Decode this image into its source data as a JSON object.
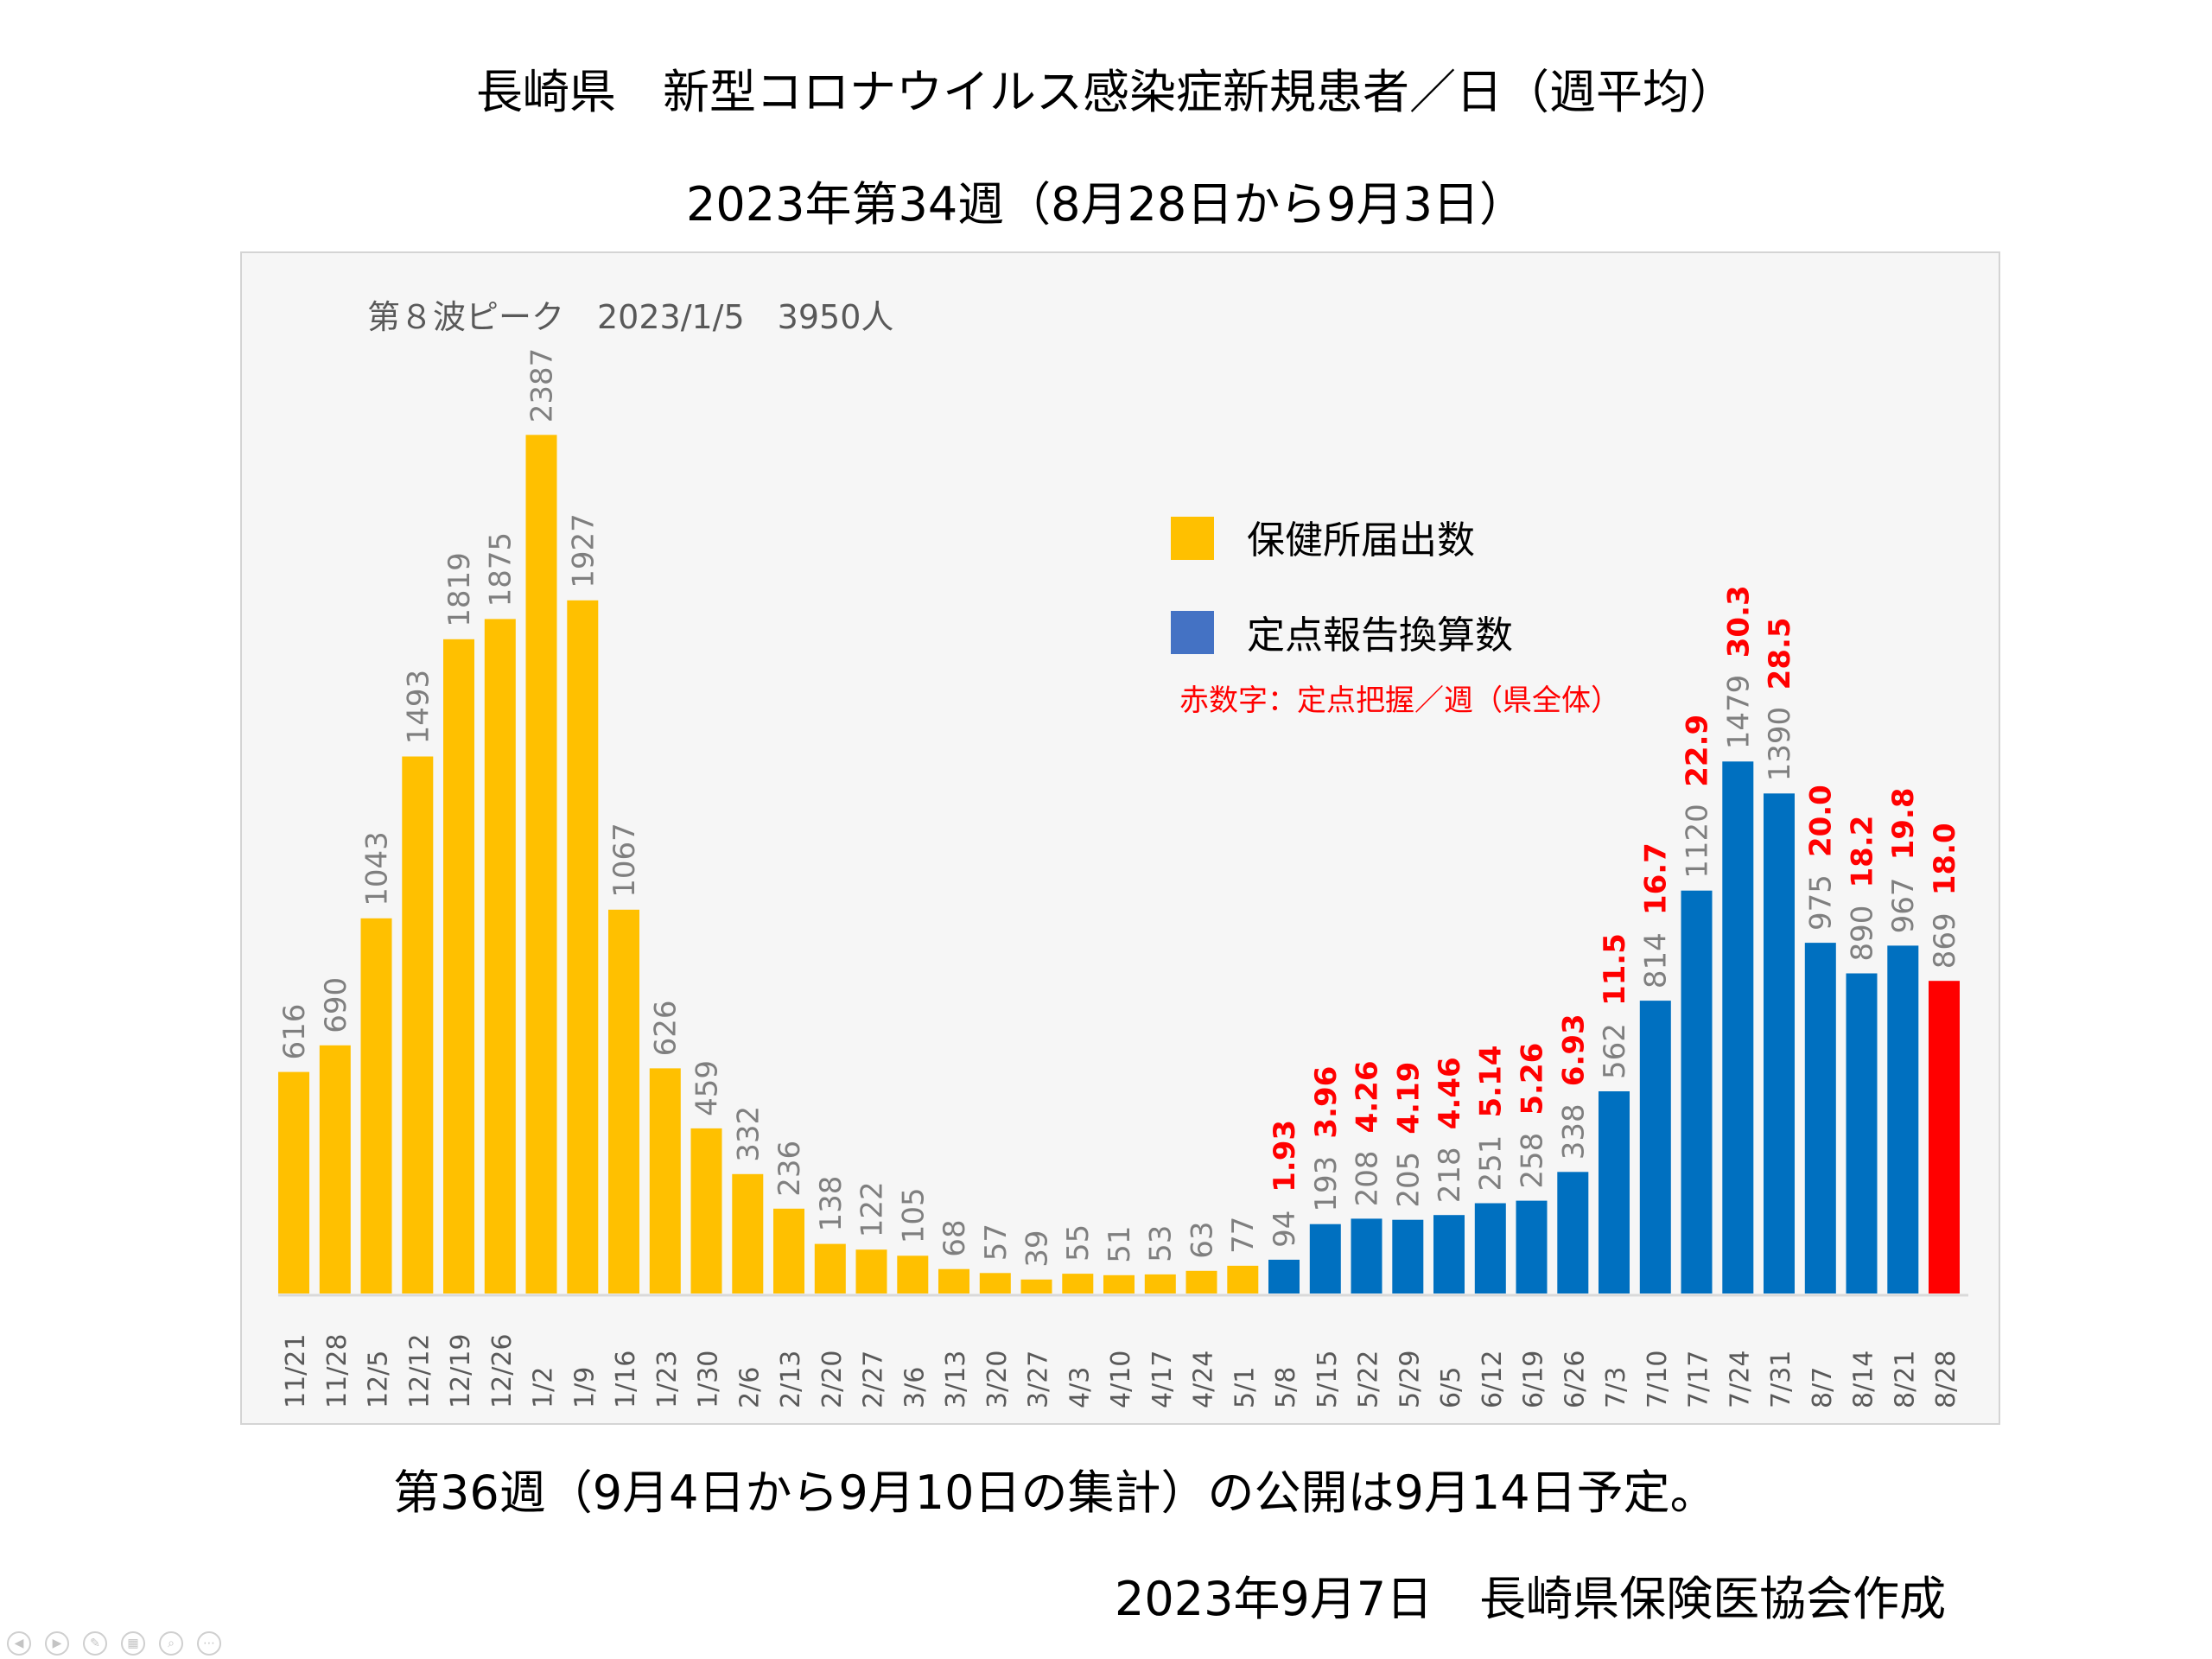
{
  "title": "長崎県　新型コロナウイルス感染症新規患者／日（週平均）",
  "subtitle": "2023年第34週（8月28日から9月3日）",
  "footer_note": "第36週（9月4日から9月10日の集計）の公開は9月14日予定。",
  "credit": "2023年9月7日　長崎県保険医協会作成",
  "colors": {
    "hoken": "#FFC000",
    "teiten": "#0070C0",
    "latest": "#FF0000",
    "value_label": "#7F7F7F",
    "rate_label": "#FF0000",
    "axis": "#D9D9D9"
  },
  "nav_icons": [
    "prev-icon",
    "next-icon",
    "pen-icon",
    "slides-icon",
    "zoom-icon",
    "more-icon"
  ],
  "chart_data": {
    "type": "bar",
    "annotation": "第８波ピーク　2023/1/5　3950人",
    "legend_note": "赤数字：定点把握／週（県全体）",
    "legend_position": "top-right",
    "grid": false,
    "ylim": [
      0,
      2500
    ],
    "categories": [
      "11/21",
      "11/28",
      "12/5",
      "12/12",
      "12/19",
      "12/26",
      "1/2",
      "1/9",
      "1/16",
      "1/23",
      "1/30",
      "2/6",
      "2/13",
      "2/20",
      "2/27",
      "3/6",
      "3/13",
      "3/20",
      "3/27",
      "4/3",
      "4/10",
      "4/17",
      "4/24",
      "5/1",
      "5/8",
      "5/15",
      "5/22",
      "5/29",
      "6/5",
      "6/12",
      "6/19",
      "6/26",
      "7/3",
      "7/10",
      "7/17",
      "7/24",
      "7/31",
      "8/7",
      "8/14",
      "8/21",
      "8/28"
    ],
    "series": [
      {
        "name": "保健所届出数",
        "color": "#FFC000",
        "values": [
          616,
          690,
          1043,
          1493,
          1819,
          1875,
          2387,
          1927,
          1067,
          626,
          459,
          332,
          236,
          138,
          122,
          105,
          68,
          57,
          39,
          55,
          51,
          53,
          63,
          77,
          null,
          null,
          null,
          null,
          null,
          null,
          null,
          null,
          null,
          null,
          null,
          null,
          null,
          null,
          null,
          null,
          null
        ]
      },
      {
        "name": "定点報告換算数",
        "color": "#0070C0",
        "values": [
          null,
          null,
          null,
          null,
          null,
          null,
          null,
          null,
          null,
          null,
          null,
          null,
          null,
          null,
          null,
          null,
          null,
          null,
          null,
          null,
          null,
          null,
          null,
          null,
          94,
          193,
          208,
          205,
          218,
          251,
          258,
          338,
          562,
          814,
          1120,
          1479,
          1390,
          975,
          890,
          967,
          869
        ]
      }
    ],
    "teiten_per_week": [
      null,
      null,
      null,
      null,
      null,
      null,
      null,
      null,
      null,
      null,
      null,
      null,
      null,
      null,
      null,
      null,
      null,
      null,
      null,
      null,
      null,
      null,
      null,
      null,
      "1.93",
      "3.96",
      "4.26",
      "4.19",
      "4.46",
      "5.14",
      "5.26",
      "6.93",
      "11.5",
      "16.7",
      "22.9",
      "30.3",
      "28.5",
      "20.0",
      "18.2",
      "19.8",
      "18.0"
    ],
    "highlight_last": true
  }
}
